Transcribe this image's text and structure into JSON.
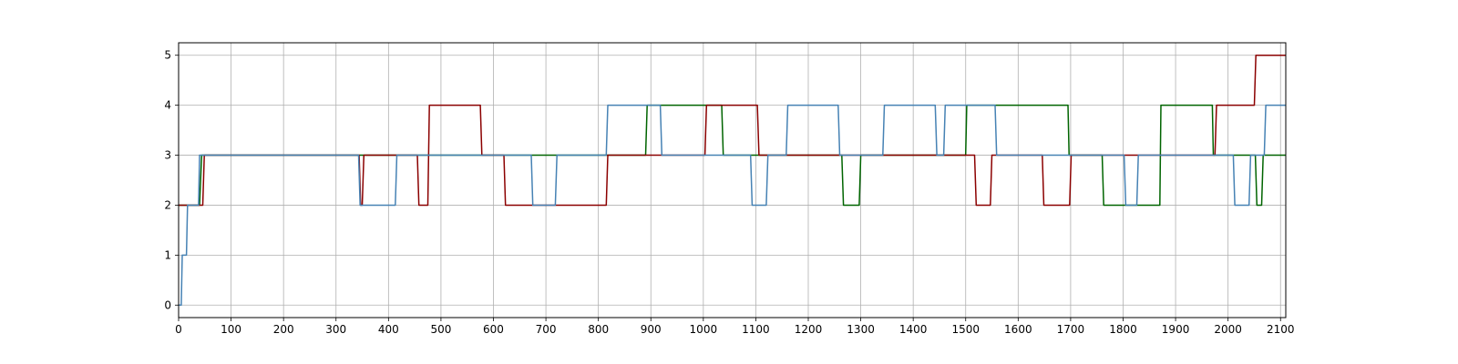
{
  "chart_data": {
    "type": "line",
    "step": true,
    "grid": true,
    "legend": "none",
    "title": "",
    "xlabel": "",
    "ylabel": "",
    "xlim": [
      0,
      2110
    ],
    "ylim": [
      -0.25,
      5.25
    ],
    "xticks": [
      0,
      100,
      200,
      300,
      400,
      500,
      600,
      700,
      800,
      900,
      1000,
      1100,
      1200,
      1300,
      1400,
      1500,
      1600,
      1700,
      1800,
      1900,
      2000,
      2100
    ],
    "yticks": [
      0,
      1,
      2,
      3,
      4,
      5
    ],
    "series": [
      {
        "color": "#006400",
        "x": [
          0,
          40,
          44,
          890,
          893,
          1000,
          1035,
          1038,
          1264,
          1267,
          1297,
          1300,
          1500,
          1502,
          1556,
          1695,
          1697,
          1760,
          1763,
          1870,
          1872,
          1970,
          1972,
          2052,
          2055,
          2064,
          2067,
          2110
        ],
        "y": [
          2,
          2,
          3,
          3,
          4,
          4,
          4,
          3,
          3,
          2,
          2,
          3,
          3,
          4,
          4,
          4,
          3,
          3,
          2,
          2,
          4,
          4,
          3,
          3,
          2,
          2,
          3,
          3
        ]
      },
      {
        "color": "#8b0000",
        "x": [
          0,
          46,
          49,
          344,
          347,
          350,
          353,
          455,
          458,
          475,
          478,
          575,
          578,
          620,
          623,
          815,
          818,
          1003,
          1006,
          1103,
          1106,
          1517,
          1520,
          1547,
          1550,
          1646,
          1649,
          1698,
          1701,
          1975,
          1978,
          2050,
          2053,
          2110
        ],
        "y": [
          2,
          2,
          3,
          3,
          2,
          2,
          3,
          3,
          2,
          2,
          4,
          4,
          3,
          3,
          2,
          2,
          3,
          3,
          4,
          4,
          3,
          3,
          2,
          2,
          3,
          3,
          2,
          2,
          3,
          3,
          4,
          4,
          5,
          5
        ]
      },
      {
        "color": "#4682b4",
        "x": [
          0,
          5,
          7,
          15,
          17,
          38,
          40,
          343,
          346,
          413,
          416,
          672,
          675,
          718,
          721,
          815,
          818,
          918,
          921,
          1090,
          1093,
          1120,
          1123,
          1158,
          1161,
          1257,
          1260,
          1342,
          1345,
          1442,
          1445,
          1458,
          1461,
          1556,
          1559,
          1802,
          1805,
          1826,
          1829,
          2010,
          2013,
          2040,
          2043,
          2069,
          2072,
          2110
        ],
        "y": [
          0,
          0,
          1,
          1,
          2,
          2,
          3,
          3,
          2,
          2,
          3,
          3,
          2,
          2,
          3,
          3,
          4,
          4,
          3,
          3,
          2,
          2,
          3,
          3,
          4,
          4,
          3,
          3,
          4,
          4,
          3,
          3,
          4,
          4,
          3,
          3,
          2,
          2,
          3,
          3,
          2,
          2,
          3,
          3,
          4,
          4
        ]
      }
    ]
  }
}
